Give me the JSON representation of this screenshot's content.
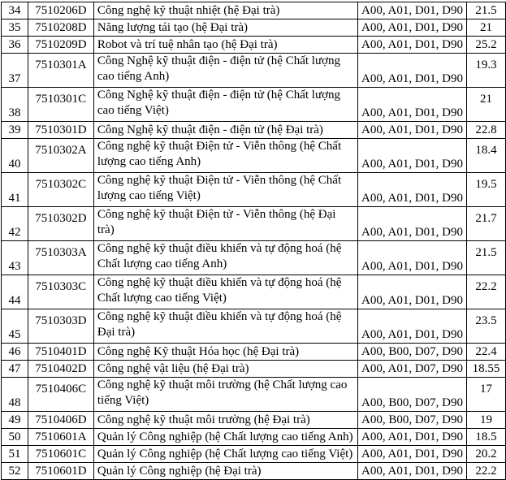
{
  "rows": [
    {
      "no": "34",
      "code": "7510206D",
      "name": "Công nghệ kỹ thuật nhiệt (hệ Đại trà)",
      "combo": "A00, A01, D01, D90",
      "score": "21.5"
    },
    {
      "no": "35",
      "code": "7510208D",
      "name": "Năng lượng tái tạo (hệ Đại trà)",
      "combo": "A00, A01, D01, D90",
      "score": "21"
    },
    {
      "no": "36",
      "code": "7510209D",
      "name": "Robot và trí tuệ nhân tạo (hệ Đại trà)",
      "combo": "A00, A01, D01, D90",
      "score": "25.2"
    },
    {
      "no": "37",
      "code": "7510301A",
      "name": "Công Nghệ kỹ thuật điện - điện tử (hệ Chất lượng cao tiếng Anh)",
      "combo": "A00, A01, D01, D90",
      "score": "19.3"
    },
    {
      "no": "38",
      "code": "7510301C",
      "name": "Công Nghệ kỹ thuật điện - điện tử (hệ Chất lượng cao tiếng Việt)",
      "combo": "A00, A01, D01, D90",
      "score": "21"
    },
    {
      "no": "39",
      "code": "7510301D",
      "name": "Công Nghệ kỹ thuật điện - điện tử (hệ Đại trà)",
      "combo": "A00, A01, D01, D90",
      "score": "22.8"
    },
    {
      "no": "40",
      "code": "7510302A",
      "name": "Công nghệ kỹ thuật Điện tử - Viễn thông (hệ Chất lượng cao tiếng Anh)",
      "combo": "A00, A01, D01, D90",
      "score": "18.4"
    },
    {
      "no": "41",
      "code": "7510302C",
      "name": "Công nghệ kỹ thuật Điện tử - Viễn thông (hệ Chất lượng cao tiếng Việt)",
      "combo": "A00, A01, D01, D90",
      "score": "19.5"
    },
    {
      "no": "42",
      "code": "7510302D",
      "name": "Công nghệ kỹ thuật Điện tử - Viễn thông (hệ Đại trà)",
      "combo": "A00, A01, D01, D90",
      "score": "21.7"
    },
    {
      "no": "43",
      "code": "7510303A",
      "name": "Công nghệ kỹ thuật điều khiển và tự động hoá (hệ Chất lượng cao tiếng Anh)",
      "combo": "A00, A01, D01, D90",
      "score": "21.5"
    },
    {
      "no": "44",
      "code": "7510303C",
      "name": "Công nghệ kỹ thuật điều khiển và tự động hoá (hệ Chất lượng cao tiếng Việt)",
      "combo": "A00, A01, D01, D90",
      "score": "22.2"
    },
    {
      "no": "45",
      "code": "7510303D",
      "name": "Công nghệ kỹ thuật điều khiển và tự động hoá (hệ Đại trà)",
      "combo": "A00, A01, D01, D90",
      "score": "23.5"
    },
    {
      "no": "46",
      "code": "7510401D",
      "name": "Công nghệ Kỹ thuật Hóa học (hệ Đại trà)",
      "combo": "A00, B00, D07, D90",
      "score": "22.4"
    },
    {
      "no": "47",
      "code": "7510402D",
      "name": "Công nghệ vật liệu (hệ Đại trà)",
      "combo": "A00, A01, D07, D90",
      "score": "18.55"
    },
    {
      "no": "48",
      "code": "7510406C",
      "name": "Công nghệ kỹ thuật môi trường (hệ Chất lượng cao tiếng Việt)",
      "combo": "A00, B00, D07, D90",
      "score": "17"
    },
    {
      "no": "49",
      "code": "7510406D",
      "name": "Công nghệ kỹ thuật môi trường (hệ Đại trà)",
      "combo": "A00, B00, D07, D90",
      "score": "19"
    },
    {
      "no": "50",
      "code": "7510601A",
      "name": "Quản lý Công nghiệp (hệ Chất lượng cao tiếng Anh)",
      "combo": "A00, A01, D01, D90",
      "score": "18.5"
    },
    {
      "no": "51",
      "code": "7510601C",
      "name": "Quản lý Công nghiệp (hệ Chất lượng cao tiếng Việt)",
      "combo": "A00, A01, D01, D90",
      "score": "20.2"
    },
    {
      "no": "52",
      "code": "7510601D",
      "name": "Quản lý Công nghiệp (hệ Đại trà)",
      "combo": "A00, A01, D01, D90",
      "score": "22.2"
    }
  ]
}
